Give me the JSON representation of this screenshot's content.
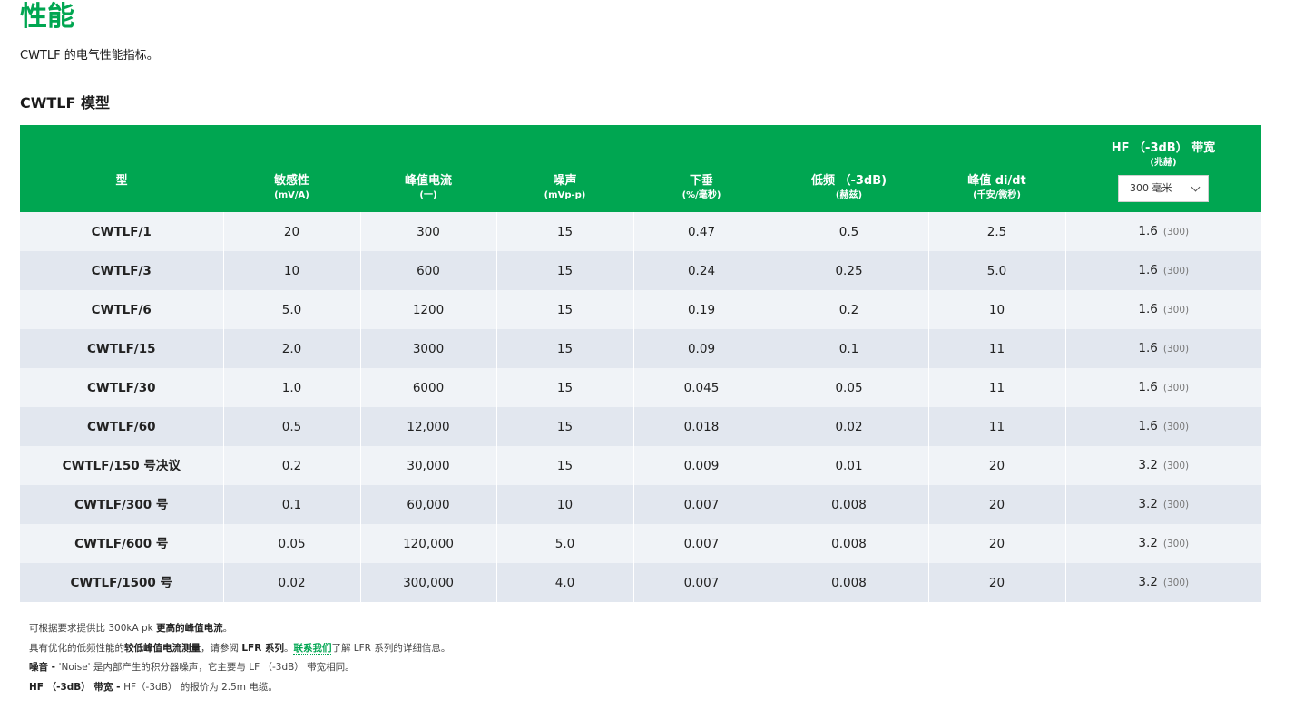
{
  "page": {
    "title": "性能",
    "intro": "CWTLF 的电气性能指标。",
    "section_title": "CWTLF 模型"
  },
  "table": {
    "headers": {
      "model": "型",
      "sensitivity": "敏感性",
      "sensitivity_unit": "(mV/A)",
      "peak_current": "峰值电流",
      "peak_current_unit": "(一)",
      "noise": "噪声",
      "noise_unit": "(mVp-p)",
      "droop": "下垂",
      "droop_unit": "(%/毫秒)",
      "lf": "低频 （-3dB)",
      "lf_unit": "(赫兹)",
      "didt": "峰值 di/dt",
      "didt_unit": "(千安/微秒)",
      "hf": "HF （-3dB） 带宽",
      "hf_unit": "(兆赫)",
      "hf_select_value": "300 毫米"
    },
    "rows": [
      {
        "model": "CWTLF/1",
        "sensitivity": "20",
        "peak": "300",
        "noise": "15",
        "droop": "0.47",
        "lf": "0.5",
        "didt": "2.5",
        "hf": "1.6",
        "hf_sub": "(300)"
      },
      {
        "model": "CWTLF/3",
        "sensitivity": "10",
        "peak": "600",
        "noise": "15",
        "droop": "0.24",
        "lf": "0.25",
        "didt": "5.0",
        "hf": "1.6",
        "hf_sub": "(300)"
      },
      {
        "model": "CWTLF/6",
        "sensitivity": "5.0",
        "peak": "1200",
        "noise": "15",
        "droop": "0.19",
        "lf": "0.2",
        "didt": "10",
        "hf": "1.6",
        "hf_sub": "(300)"
      },
      {
        "model": "CWTLF/15",
        "sensitivity": "2.0",
        "peak": "3000",
        "noise": "15",
        "droop": "0.09",
        "lf": "0.1",
        "didt": "11",
        "hf": "1.6",
        "hf_sub": "(300)"
      },
      {
        "model": "CWTLF/30",
        "sensitivity": "1.0",
        "peak": "6000",
        "noise": "15",
        "droop": "0.045",
        "lf": "0.05",
        "didt": "11",
        "hf": "1.6",
        "hf_sub": "(300)"
      },
      {
        "model": "CWTLF/60",
        "sensitivity": "0.5",
        "peak": "12,000",
        "noise": "15",
        "droop": "0.018",
        "lf": "0.02",
        "didt": "11",
        "hf": "1.6",
        "hf_sub": "(300)"
      },
      {
        "model": "CWTLF/150 号决议",
        "sensitivity": "0.2",
        "peak": "30,000",
        "noise": "15",
        "droop": "0.009",
        "lf": "0.01",
        "didt": "20",
        "hf": "3.2",
        "hf_sub": "(300)"
      },
      {
        "model": "CWTLF/300 号",
        "sensitivity": "0.1",
        "peak": "60,000",
        "noise": "10",
        "droop": "0.007",
        "lf": "0.008",
        "didt": "20",
        "hf": "3.2",
        "hf_sub": "(300)"
      },
      {
        "model": "CWTLF/600 号",
        "sensitivity": "0.05",
        "peak": "120,000",
        "noise": "5.0",
        "droop": "0.007",
        "lf": "0.008",
        "didt": "20",
        "hf": "3.2",
        "hf_sub": "(300)"
      },
      {
        "model": "CWTLF/1500 号",
        "sensitivity": "0.02",
        "peak": "300,000",
        "noise": "4.0",
        "droop": "0.007",
        "lf": "0.008",
        "didt": "20",
        "hf": "3.2",
        "hf_sub": "(300)"
      }
    ]
  },
  "notes": {
    "line1_pre": "可根据要求提供比 300kA pk ",
    "line1_bold": "更高的峰值电流",
    "line1_post": "。",
    "line2_pre": "具有优化的低频性能的",
    "line2_bold1": "较低峰值电流测量",
    "line2_mid": "，请参阅 ",
    "line2_bold2": "LFR 系列",
    "line2_mid2": "。",
    "line2_link": "联系我们",
    "line2_post": "了解 LFR 系列的详细信息。",
    "line3_bold": "噪音 - ",
    "line3_text": "'Noise' 是内部产生的积分器噪声，它主要与 LF （-3dB） 带宽相同。",
    "line4_bold": "HF （-3dB） 带宽 - ",
    "line4_text": "HF（-3dB） 的报价为 2.5m 电缆。"
  },
  "colors": {
    "accent": "#00a651",
    "row_light": "#f0f3f7",
    "row_dark": "#e2e7ef"
  },
  "icons": {
    "select": "chevron-down-icon"
  }
}
